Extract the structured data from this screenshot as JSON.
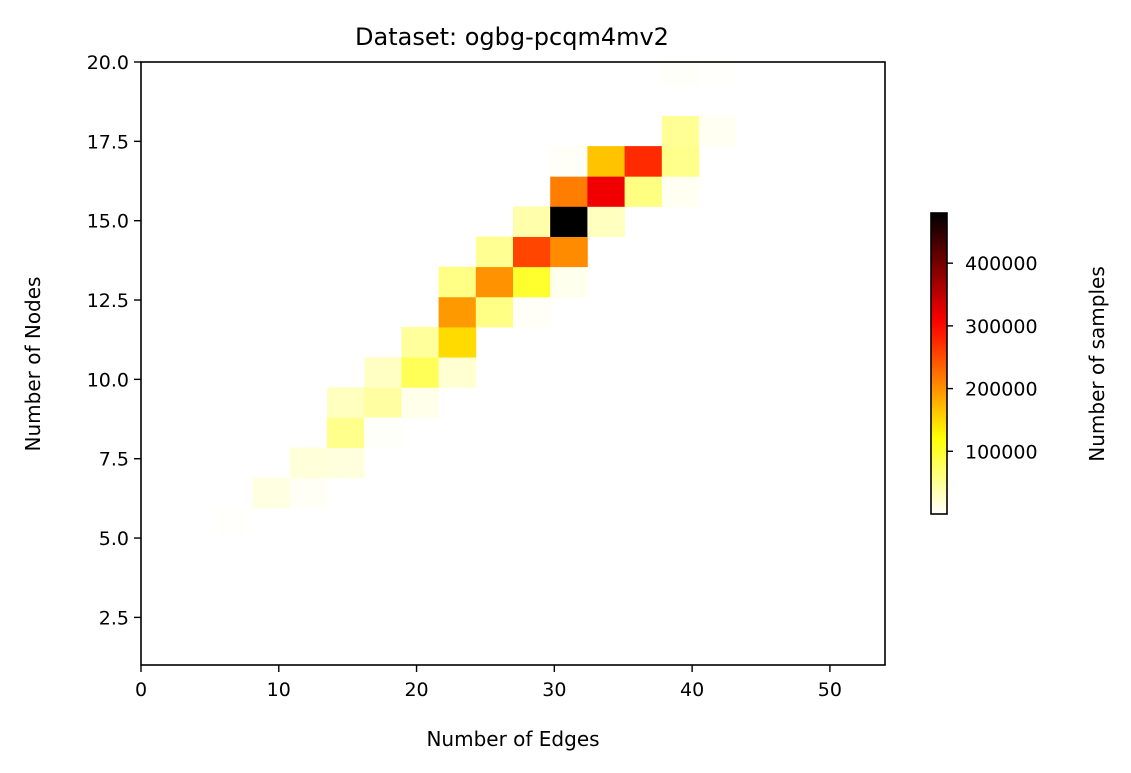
{
  "chart_data": {
    "type": "heatmap",
    "title": "Dataset: ogbg-pcqm4mv2",
    "xlabel": "Number of Edges",
    "ylabel": "Number of Nodes",
    "xlim": [
      0,
      54
    ],
    "ylim": [
      1,
      20
    ],
    "xticks": [
      0,
      10,
      20,
      30,
      40,
      50
    ],
    "yticks": [
      2.5,
      5.0,
      7.5,
      10.0,
      12.5,
      15.0,
      17.5,
      20.0
    ],
    "x_bin_width": 2.7,
    "y_bin_height": 0.95,
    "colormap": "hot_r",
    "colorbar": {
      "label": "Number of samples",
      "min": 0,
      "max": 480000,
      "ticks": [
        100000,
        200000,
        300000,
        400000
      ]
    },
    "cells": [
      {
        "x": 5.4,
        "y": 5.05,
        "value": 2000
      },
      {
        "x": 8.1,
        "y": 5.95,
        "value": 14000
      },
      {
        "x": 10.8,
        "y": 5.95,
        "value": 5000
      },
      {
        "x": 10.8,
        "y": 6.9,
        "value": 18000
      },
      {
        "x": 13.5,
        "y": 6.9,
        "value": 16000
      },
      {
        "x": 13.5,
        "y": 7.85,
        "value": 55000
      },
      {
        "x": 13.5,
        "y": 8.8,
        "value": 30000
      },
      {
        "x": 16.2,
        "y": 8.8,
        "value": 45000
      },
      {
        "x": 16.2,
        "y": 9.75,
        "value": 28000
      },
      {
        "x": 16.2,
        "y": 7.85,
        "value": 3000
      },
      {
        "x": 18.9,
        "y": 8.8,
        "value": 10000
      },
      {
        "x": 18.9,
        "y": 9.75,
        "value": 80000
      },
      {
        "x": 18.9,
        "y": 10.7,
        "value": 48000
      },
      {
        "x": 21.6,
        "y": 9.75,
        "value": 22000
      },
      {
        "x": 21.6,
        "y": 10.7,
        "value": 148000
      },
      {
        "x": 21.6,
        "y": 11.65,
        "value": 195000
      },
      {
        "x": 21.6,
        "y": 12.6,
        "value": 58000
      },
      {
        "x": 24.3,
        "y": 11.65,
        "value": 58000
      },
      {
        "x": 24.3,
        "y": 12.6,
        "value": 200000
      },
      {
        "x": 24.3,
        "y": 13.55,
        "value": 52000
      },
      {
        "x": 27.0,
        "y": 11.65,
        "value": 4000
      },
      {
        "x": 27.0,
        "y": 12.6,
        "value": 100000
      },
      {
        "x": 27.0,
        "y": 13.55,
        "value": 255000
      },
      {
        "x": 27.0,
        "y": 14.5,
        "value": 40000
      },
      {
        "x": 29.7,
        "y": 12.6,
        "value": 8000
      },
      {
        "x": 29.7,
        "y": 13.55,
        "value": 205000
      },
      {
        "x": 29.7,
        "y": 14.5,
        "value": 480000
      },
      {
        "x": 29.7,
        "y": 15.45,
        "value": 215000
      },
      {
        "x": 29.7,
        "y": 16.4,
        "value": 4000
      },
      {
        "x": 32.4,
        "y": 14.5,
        "value": 30000
      },
      {
        "x": 32.4,
        "y": 15.45,
        "value": 315000
      },
      {
        "x": 32.4,
        "y": 16.4,
        "value": 165000
      },
      {
        "x": 35.1,
        "y": 15.45,
        "value": 60000
      },
      {
        "x": 35.1,
        "y": 16.4,
        "value": 275000
      },
      {
        "x": 37.8,
        "y": 15.45,
        "value": 6000
      },
      {
        "x": 37.8,
        "y": 16.4,
        "value": 55000
      },
      {
        "x": 37.8,
        "y": 17.35,
        "value": 50000
      },
      {
        "x": 37.8,
        "y": 19.25,
        "value": 3000
      },
      {
        "x": 40.5,
        "y": 17.35,
        "value": 6000
      },
      {
        "x": 40.5,
        "y": 19.25,
        "value": 1500
      }
    ]
  }
}
